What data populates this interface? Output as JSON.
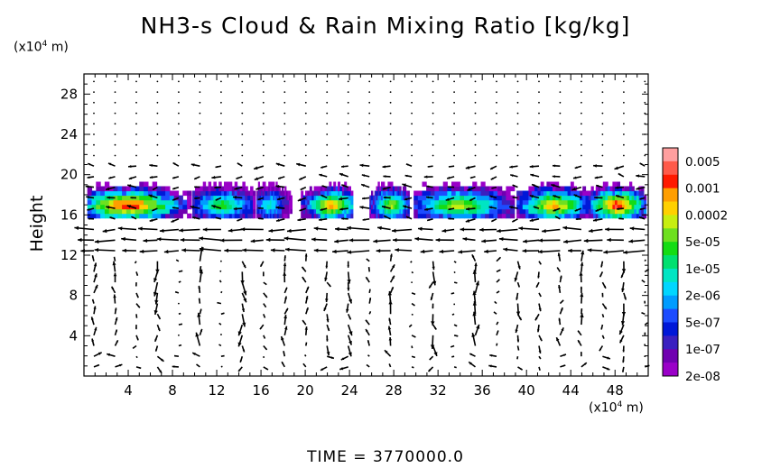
{
  "chart_data": {
    "type": "heatmap",
    "title": "NH3-s Cloud & Rain Mixing Ratio [kg/kg]",
    "ylabel": "Height",
    "xunit": "(x10",
    "xunit_exp": "4",
    "xunit_tail": " m)",
    "yunit": "(x10",
    "yunit_exp": "4",
    "yunit_tail": " m)",
    "xlim": [
      0,
      51
    ],
    "ylim": [
      0,
      30
    ],
    "xticks": [
      4,
      8,
      12,
      16,
      20,
      24,
      28,
      32,
      36,
      40,
      44,
      48
    ],
    "yticks": [
      4,
      8,
      12,
      16,
      20,
      24,
      28
    ],
    "colorbar": {
      "labels": [
        "0.005",
        "0.001",
        "0.0002",
        "5e-05",
        "1e-05",
        "2e-06",
        "5e-07",
        "1e-07",
        "2e-08"
      ],
      "colors": [
        "#ff9f9f",
        "#ff5a4a",
        "#ff1a00",
        "#ff9e00",
        "#ffd000",
        "#c7ee10",
        "#6ee020",
        "#14dc14",
        "#00e070",
        "#00e5c3",
        "#00d6ff",
        "#009cff",
        "#1c4cff",
        "#0018d8",
        "#3a20c0",
        "#7000b0",
        "#9a00c8"
      ]
    },
    "cloud_layer": {
      "base_height": 16,
      "top_height": 19,
      "clouds": [
        {
          "x0": 0.3,
          "x1": 9.7,
          "peak": 0.005,
          "core_x": 4.0
        },
        {
          "x0": 9.8,
          "x1": 15.5,
          "peak": 5e-05,
          "core_x": 12.5
        },
        {
          "x0": 15.6,
          "x1": 18.8,
          "peak": 1e-05,
          "core_x": 16.8
        },
        {
          "x0": 19.6,
          "x1": 24.3,
          "peak": 0.001,
          "core_x": 22.4
        },
        {
          "x0": 25.8,
          "x1": 29.4,
          "peak": 0.0002,
          "core_x": 27.8
        },
        {
          "x0": 29.8,
          "x1": 38.9,
          "peak": 0.0002,
          "core_x": 34.0
        },
        {
          "x0": 39.1,
          "x1": 45.6,
          "peak": 0.001,
          "core_x": 42.5
        },
        {
          "x0": 45.6,
          "x1": 50.8,
          "peak": 0.005,
          "core_x": 48.2
        }
      ]
    },
    "wind_vectors": "velocity field arrows overlaid"
  },
  "time_label": "TIME =  3770000.0"
}
